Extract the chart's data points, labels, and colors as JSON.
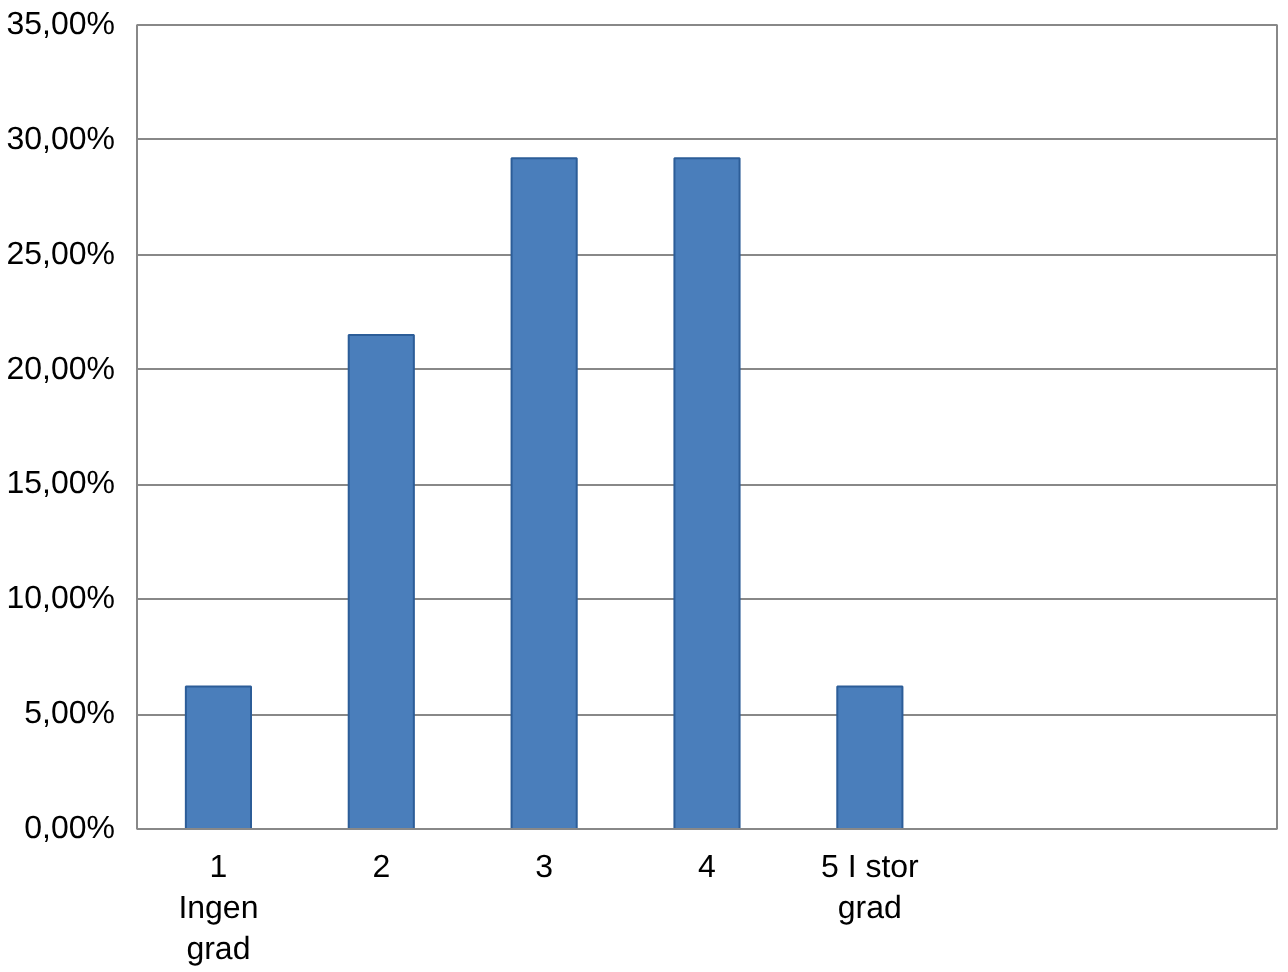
{
  "chart_data": {
    "type": "bar",
    "categories": [
      "1\nIngen\ngrad",
      "2",
      "3",
      "4",
      "5 I stor\ngrad",
      null,
      null
    ],
    "values": [
      6.2,
      21.5,
      29.2,
      29.2,
      6.2,
      null,
      null
    ],
    "color": "#4a7ebb",
    "ylim": [
      0,
      35
    ],
    "yticks": [
      {
        "value": 0,
        "label": "0,00%"
      },
      {
        "value": 5,
        "label": "5,00%"
      },
      {
        "value": 10,
        "label": "10,00%"
      },
      {
        "value": 15,
        "label": "15,00%"
      },
      {
        "value": 20,
        "label": "20,00%"
      },
      {
        "value": 25,
        "label": "25,00%"
      },
      {
        "value": 30,
        "label": "30,00%"
      },
      {
        "value": 35,
        "label": "35,00%"
      }
    ],
    "grid": "y"
  }
}
